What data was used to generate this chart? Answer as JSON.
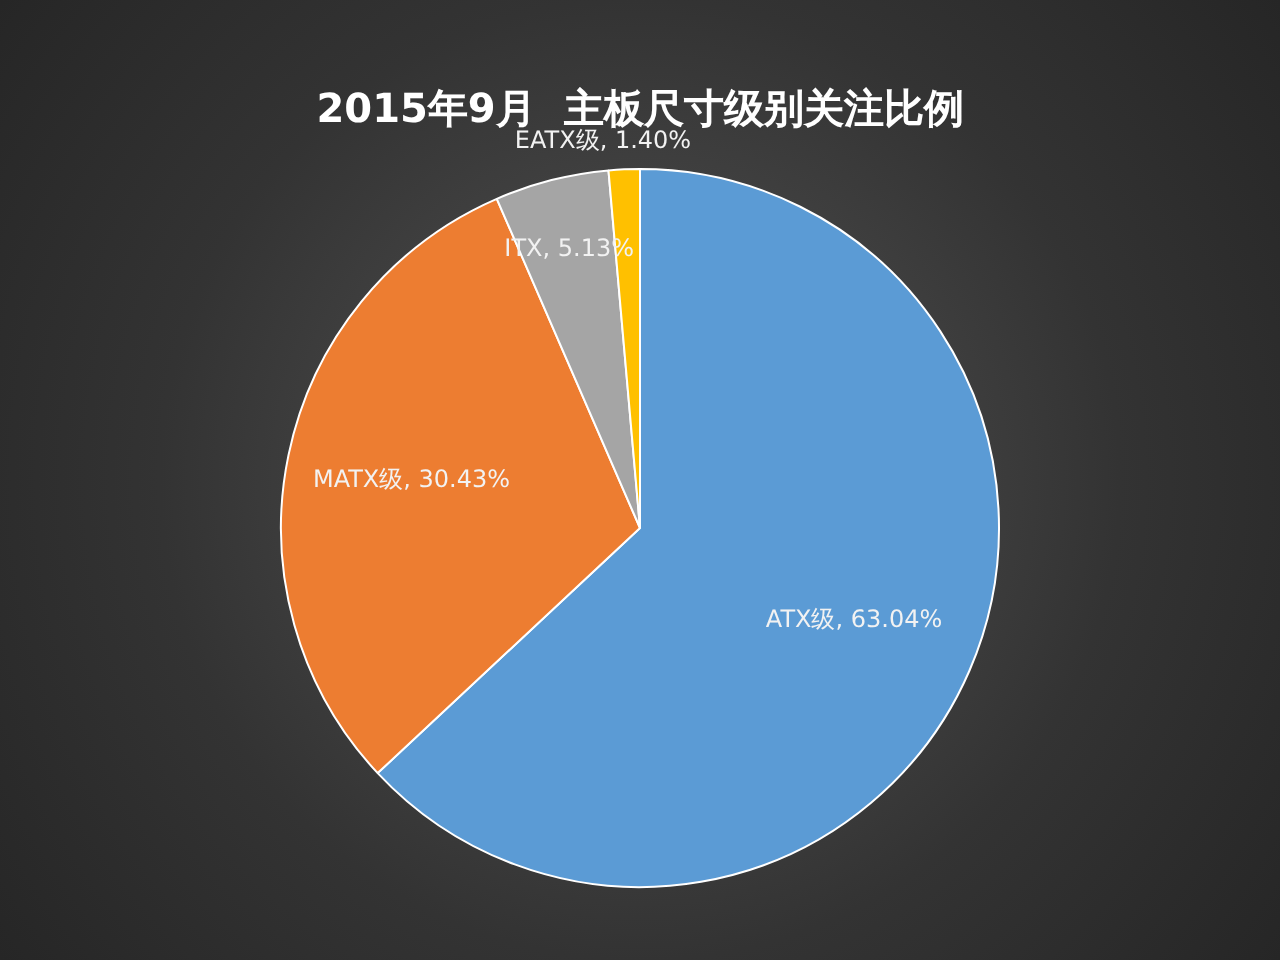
{
  "chart_data": {
    "type": "pie",
    "title": "2015年9月  主板尺寸级别关注比例",
    "categories": [
      "ATX级",
      "MATX级",
      "ITX",
      "EATX级"
    ],
    "values": [
      63.04,
      30.43,
      5.13,
      1.4
    ],
    "colors": [
      "#5b9bd5",
      "#ed7d31",
      "#a5a5a5",
      "#ffc000"
    ],
    "value_labels": [
      "63.04%",
      "30.43%",
      "5.13%",
      "1.40%"
    ],
    "legend": false
  }
}
